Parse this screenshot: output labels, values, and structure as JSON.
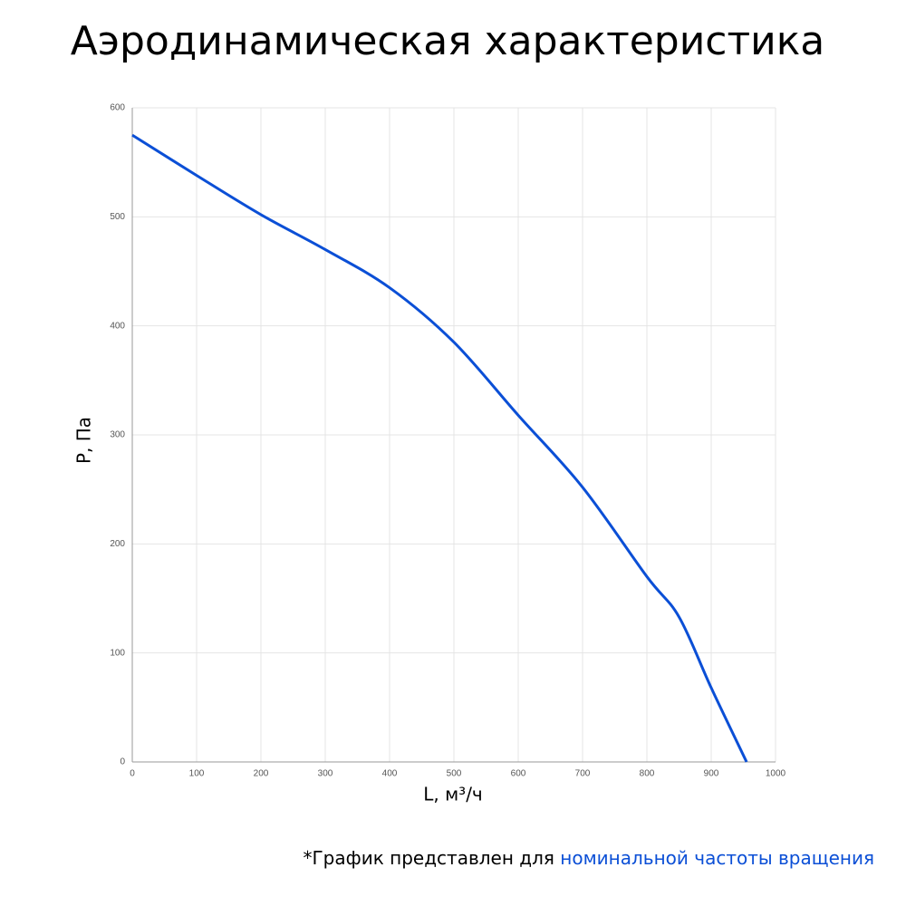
{
  "chart_data": {
    "type": "line",
    "title": "Аэродинамическая характеристика",
    "x_label": "L, м³/ч",
    "y_label": "P, Па",
    "x": [
      0,
      100,
      200,
      300,
      400,
      500,
      600,
      700,
      800,
      850,
      900,
      955
    ],
    "values": [
      575,
      538,
      502,
      470,
      435,
      385,
      318,
      252,
      170,
      133,
      68,
      0
    ],
    "color": "#0b4fd6",
    "xlim": [
      0,
      1000
    ],
    "xticks": [
      0,
      100,
      200,
      300,
      400,
      500,
      600,
      700,
      800,
      900,
      1000
    ],
    "ylim": [
      0,
      600
    ],
    "yticks": [
      0,
      100,
      200,
      300,
      400,
      500,
      600
    ],
    "grid": true,
    "footnote": "*График представлен для ",
    "footnote_highlight": "номинальной частоты вращения",
    "footnote_highlight_color": "#0b4fd6"
  }
}
